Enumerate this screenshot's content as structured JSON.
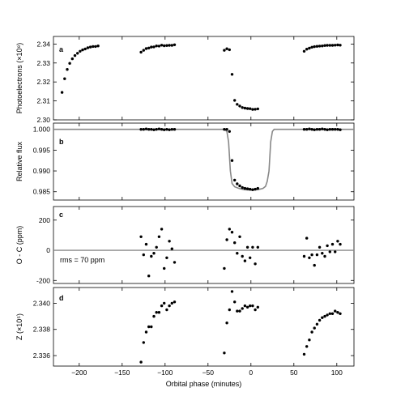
{
  "chart_data": [
    {
      "panel": "a",
      "type": "scatter",
      "ylabel": "Photoelectrons (×10⁸)",
      "ylim": [
        2.3,
        2.344
      ],
      "yticks": [
        2.3,
        2.31,
        2.32,
        2.33,
        2.34
      ],
      "ytick_labels": [
        "2.30",
        "2.31",
        "2.32",
        "2.33",
        "2.34"
      ],
      "xlim": [
        -230,
        120
      ],
      "points": [
        [
          -220,
          2.3145
        ],
        [
          -217,
          2.3217
        ],
        [
          -214,
          2.3266
        ],
        [
          -211,
          2.3298
        ],
        [
          -208,
          2.3322
        ],
        [
          -205,
          2.3339
        ],
        [
          -202,
          2.3351
        ],
        [
          -199,
          2.3362
        ],
        [
          -196,
          2.3369
        ],
        [
          -193,
          2.3374
        ],
        [
          -190,
          2.338
        ],
        [
          -187,
          2.3384
        ],
        [
          -184,
          2.3387
        ],
        [
          -181,
          2.3387
        ],
        [
          -178,
          2.339
        ],
        [
          -128,
          2.3357
        ],
        [
          -125,
          2.3367
        ],
        [
          -122,
          2.3376
        ],
        [
          -119,
          2.3379
        ],
        [
          -116,
          2.3384
        ],
        [
          -113,
          2.3385
        ],
        [
          -110,
          2.339
        ],
        [
          -107,
          2.3389
        ],
        [
          -104,
          2.3394
        ],
        [
          -101,
          2.3391
        ],
        [
          -98,
          2.3392
        ],
        [
          -95,
          2.3393
        ],
        [
          -92,
          2.3393
        ],
        [
          -89,
          2.3396
        ],
        [
          -31,
          2.3367
        ],
        [
          -28,
          2.3375
        ],
        [
          -25,
          2.337
        ],
        [
          -22,
          2.324
        ],
        [
          -19,
          2.3103
        ],
        [
          -16,
          2.3082
        ],
        [
          -13,
          2.3073
        ],
        [
          -10,
          2.3065
        ],
        [
          -7,
          2.3062
        ],
        [
          -4,
          2.306
        ],
        [
          -1,
          2.3059
        ],
        [
          2,
          2.3055
        ],
        [
          5,
          2.3056
        ],
        [
          8,
          2.3058
        ],
        [
          62,
          2.3362
        ],
        [
          65,
          2.3373
        ],
        [
          68,
          2.3378
        ],
        [
          71,
          2.3383
        ],
        [
          74,
          2.3386
        ],
        [
          77,
          2.3388
        ],
        [
          80,
          2.3389
        ],
        [
          83,
          2.339
        ],
        [
          86,
          2.3392
        ],
        [
          89,
          2.3393
        ],
        [
          92,
          2.3393
        ],
        [
          95,
          2.3393
        ],
        [
          98,
          2.3394
        ],
        [
          101,
          2.3395
        ],
        [
          104,
          2.3394
        ]
      ]
    },
    {
      "panel": "b",
      "type": "scatter",
      "ylabel": "Relative flux",
      "ylim": [
        0.983,
        1.0015
      ],
      "yticks": [
        0.985,
        0.99,
        0.995,
        1.0
      ],
      "ytick_labels": [
        "0.985",
        "0.990",
        "0.995",
        "1.000"
      ],
      "xlim": [
        -230,
        120
      ],
      "model": [
        [
          -230,
          1.0
        ],
        [
          -31,
          1.0
        ],
        [
          -28,
          0.9995
        ],
        [
          -26,
          0.997
        ],
        [
          -24,
          0.99
        ],
        [
          -22,
          0.987
        ],
        [
          -19,
          0.9862
        ],
        [
          -14,
          0.9858
        ],
        [
          -8,
          0.9855
        ],
        [
          0,
          0.9854
        ],
        [
          8,
          0.9855
        ],
        [
          14,
          0.9858
        ],
        [
          17,
          0.9863
        ],
        [
          19,
          0.9875
        ],
        [
          21,
          0.99
        ],
        [
          23,
          0.997
        ],
        [
          25,
          0.9995
        ],
        [
          27,
          1.0
        ],
        [
          120,
          1.0
        ]
      ],
      "points": [
        [
          -128,
          1.0
        ],
        [
          -125,
          1.0
        ],
        [
          -122,
          1.0001
        ],
        [
          -119,
          1.0
        ],
        [
          -116,
          1.0
        ],
        [
          -113,
          0.9999
        ],
        [
          -110,
          1.0
        ],
        [
          -107,
          1.0001
        ],
        [
          -104,
          1.0
        ],
        [
          -101,
          0.9999
        ],
        [
          -98,
          1.0
        ],
        [
          -95,
          0.9999
        ],
        [
          -92,
          1.0
        ],
        [
          -89,
          1.0
        ],
        [
          -31,
          1.0
        ],
        [
          -28,
          1.0
        ],
        [
          -25,
          0.9995
        ],
        [
          -22,
          0.9925
        ],
        [
          -19,
          0.9878
        ],
        [
          -16,
          0.9869
        ],
        [
          -13,
          0.9864
        ],
        [
          -10,
          0.986
        ],
        [
          -7,
          0.9858
        ],
        [
          -4,
          0.9857
        ],
        [
          -1,
          0.9856
        ],
        [
          2,
          0.9855
        ],
        [
          5,
          0.9856
        ],
        [
          8,
          0.9858
        ],
        [
          62,
          1.0
        ],
        [
          65,
          1.0
        ],
        [
          68,
          1.0001
        ],
        [
          71,
          1.0
        ],
        [
          74,
          0.9999
        ],
        [
          77,
          1.0
        ],
        [
          80,
          1.0
        ],
        [
          83,
          1.0001
        ],
        [
          86,
          1.0
        ],
        [
          89,
          0.9999
        ],
        [
          92,
          1.0
        ],
        [
          95,
          1.0
        ],
        [
          98,
          1.0
        ],
        [
          101,
          1.0
        ],
        [
          104,
          0.9999
        ]
      ]
    },
    {
      "panel": "c",
      "type": "scatter",
      "ylabel": "O - C (ppm)",
      "ylim": [
        -220,
        290
      ],
      "yticks": [
        -200,
        0,
        200
      ],
      "ytick_labels": [
        "-200",
        "0",
        "200"
      ],
      "xlim": [
        -230,
        120
      ],
      "annotation": "rms = 70 ppm",
      "points": [
        [
          -128,
          90
        ],
        [
          -125,
          -30
        ],
        [
          -122,
          40
        ],
        [
          -119,
          -170
        ],
        [
          -116,
          -40
        ],
        [
          -113,
          -20
        ],
        [
          -110,
          20
        ],
        [
          -107,
          90
        ],
        [
          -104,
          140
        ],
        [
          -101,
          -120
        ],
        [
          -98,
          -50
        ],
        [
          -95,
          60
        ],
        [
          -92,
          10
        ],
        [
          -89,
          -80
        ],
        [
          -31,
          -120
        ],
        [
          -28,
          70
        ],
        [
          -25,
          140
        ],
        [
          -22,
          120
        ],
        [
          -19,
          50
        ],
        [
          -16,
          -20
        ],
        [
          -13,
          90
        ],
        [
          -10,
          -40
        ],
        [
          -7,
          -70
        ],
        [
          -4,
          20
        ],
        [
          -1,
          -50
        ],
        [
          2,
          20
        ],
        [
          5,
          -90
        ],
        [
          8,
          20
        ],
        [
          62,
          -40
        ],
        [
          65,
          80
        ],
        [
          68,
          -50
        ],
        [
          71,
          -30
        ],
        [
          74,
          -100
        ],
        [
          77,
          -30
        ],
        [
          80,
          20
        ],
        [
          83,
          -20
        ],
        [
          86,
          -40
        ],
        [
          89,
          30
        ],
        [
          92,
          -10
        ],
        [
          95,
          40
        ],
        [
          98,
          -10
        ],
        [
          101,
          60
        ],
        [
          104,
          40
        ]
      ]
    },
    {
      "panel": "d",
      "type": "scatter",
      "ylabel": "Z (×10⁵)",
      "ylim": [
        2.3352,
        2.3412
      ],
      "yticks": [
        2.336,
        2.338,
        2.34
      ],
      "ytick_labels": [
        "2.336",
        "2.338",
        "2.340"
      ],
      "xlim": [
        -230,
        120
      ],
      "xlabel": "Orbital phase (minutes)",
      "xticks": [
        -200,
        -150,
        -100,
        -50,
        0,
        50,
        100
      ],
      "xtick_labels": [
        "−200",
        "−150",
        "−100",
        "−50",
        "0",
        "50",
        "100"
      ],
      "points": [
        [
          -128,
          2.3355
        ],
        [
          -125,
          2.337
        ],
        [
          -122,
          2.3378
        ],
        [
          -119,
          2.3382
        ],
        [
          -116,
          2.3382
        ],
        [
          -113,
          2.339
        ],
        [
          -110,
          2.3393
        ],
        [
          -107,
          2.3393
        ],
        [
          -104,
          2.3398
        ],
        [
          -101,
          2.34
        ],
        [
          -98,
          2.3395
        ],
        [
          -95,
          2.3398
        ],
        [
          -92,
          2.34
        ],
        [
          -89,
          2.3401
        ],
        [
          -31,
          2.3362
        ],
        [
          -28,
          2.3385
        ],
        [
          -25,
          2.3395
        ],
        [
          -22,
          2.3409
        ],
        [
          -19,
          2.3401
        ],
        [
          -16,
          2.3394
        ],
        [
          -13,
          2.3394
        ],
        [
          -10,
          2.3396
        ],
        [
          -7,
          2.3398
        ],
        [
          -4,
          2.3397
        ],
        [
          -1,
          2.3398
        ],
        [
          2,
          2.3398
        ],
        [
          5,
          2.3395
        ],
        [
          8,
          2.3397
        ],
        [
          62,
          2.3361
        ],
        [
          65,
          2.3367
        ],
        [
          68,
          2.3372
        ],
        [
          71,
          2.3378
        ],
        [
          74,
          2.3381
        ],
        [
          77,
          2.3384
        ],
        [
          80,
          2.3387
        ],
        [
          83,
          2.3389
        ],
        [
          86,
          2.339
        ],
        [
          89,
          2.3391
        ],
        [
          92,
          2.3392
        ],
        [
          95,
          2.3392
        ],
        [
          98,
          2.3394
        ],
        [
          101,
          2.3393
        ],
        [
          104,
          2.3392
        ]
      ]
    }
  ]
}
